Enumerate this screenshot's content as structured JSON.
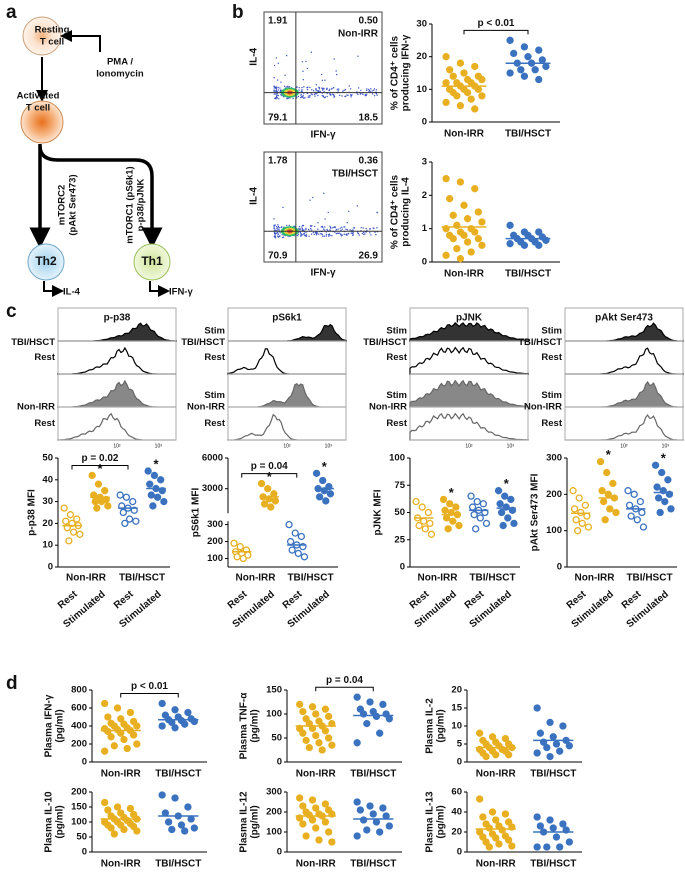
{
  "panel_labels": [
    "a",
    "b",
    "c",
    "d"
  ],
  "diagram": {
    "resting": [
      "Resting",
      "T cell"
    ],
    "stimulus": [
      "PMA /",
      "Ionomycin"
    ],
    "activated": [
      "Activated",
      "T cell"
    ],
    "left_path": [
      "mTORC2",
      "(pAkt Ser473)"
    ],
    "right_path": [
      "mTORC1 (pS6k1)",
      "p-p38/pJNK"
    ],
    "th2": "Th2",
    "th1": "Th1",
    "th2_output": "IL-4",
    "th1_output": "IFN-γ"
  },
  "flow_plots": [
    {
      "quadrants": [
        "1.91",
        "0.50",
        "79.1",
        "18.5"
      ],
      "label": "Non-IRR",
      "xlabel": "IFN-γ",
      "ylabel": "IL-4"
    },
    {
      "quadrants": [
        "1.78",
        "0.36",
        "70.9",
        "26.9"
      ],
      "label": "TBI/HSCT",
      "xlabel": "IFN-γ",
      "ylabel": "IL-4"
    }
  ],
  "histograms": [
    {
      "title": "p-p38",
      "row_labels": [
        null,
        "TBI/HSCT",
        "Rest",
        null,
        "Non-IRR",
        "Rest"
      ],
      "xtick_labels": [
        "10²",
        "10³"
      ]
    },
    {
      "title": "pS6k1",
      "row_labels": [
        "Stim",
        "TBI/HSCT",
        "Rest",
        "Stim",
        "Non-IRR",
        "Rest"
      ],
      "xtick_labels": [
        "10²",
        "10³"
      ]
    },
    {
      "title": "pJNK",
      "row_labels": [
        "Stim",
        "TBI/HSCT",
        "Rest",
        "Stim",
        "Non-IRR",
        "Rest"
      ],
      "xtick_labels": [
        "10²",
        "10³"
      ]
    },
    {
      "title": "pAkt Ser473",
      "row_labels": [
        "Stim",
        "TBI/HSCT",
        "Rest",
        "Stim",
        "Non-IRR",
        "Rest"
      ],
      "xtick_labels": [
        "10²",
        "10³"
      ]
    }
  ],
  "chart_data": [
    {
      "type": "strip",
      "ylabel": [
        "% of CD4⁺ cells",
        "producing IFN-γ"
      ],
      "categories": [
        "Non-IRR",
        "TBI/HSCT"
      ],
      "colors": [
        "#e8b021",
        "#3a72c0"
      ],
      "values": [
        [
          20,
          18,
          17,
          16,
          15,
          14,
          14,
          13,
          13,
          12,
          12,
          12,
          11,
          11,
          10,
          10,
          10,
          9,
          9,
          8,
          8,
          7,
          6,
          5,
          4
        ],
        [
          25,
          23,
          22,
          21,
          20,
          19,
          18,
          18,
          17,
          16,
          16,
          15,
          14,
          13
        ]
      ],
      "means": [
        11,
        18
      ],
      "ylim": [
        0,
        30
      ],
      "yticks": [
        0,
        10,
        20,
        30
      ],
      "brackets": [
        {
          "text": "p < 0.01",
          "categories": [
            0,
            1
          ]
        }
      ]
    },
    {
      "type": "strip",
      "ylabel": [
        "% of CD4⁺ cells",
        "producing IL-4"
      ],
      "categories": [
        "Non-IRR",
        "TBI/HSCT"
      ],
      "colors": [
        "#e8b021",
        "#3a72c0"
      ],
      "values": [
        [
          2.5,
          2.4,
          2.2,
          1.9,
          1.7,
          1.5,
          1.4,
          1.3,
          1.2,
          1.1,
          1.0,
          1.0,
          0.9,
          0.9,
          0.8,
          0.8,
          0.7,
          0.7,
          0.6,
          0.5,
          0.4,
          0.3,
          0.2,
          0.1
        ],
        [
          1.1,
          0.9,
          0.9,
          0.8,
          0.8,
          0.75,
          0.7,
          0.7,
          0.65,
          0.6,
          0.6,
          0.55,
          0.5,
          0.5
        ]
      ],
      "means": [
        1.05,
        0.7
      ],
      "ylim": [
        0,
        3
      ],
      "yticks": [
        0,
        1,
        2,
        3
      ]
    },
    {
      "type": "strip",
      "ylabel": [
        "p-p38 MFI"
      ],
      "categories": [
        "Rest",
        "Stimulated",
        "Rest",
        "Stimulated"
      ],
      "groups": [
        "Non-IRR",
        "TBI/HSCT"
      ],
      "rotated_labels": true,
      "colors": [
        "#e8b021",
        "#e8b021",
        "#3a72c0",
        "#3a72c0"
      ],
      "filled": [
        false,
        true,
        false,
        true
      ],
      "values": [
        [
          27,
          24,
          22,
          21,
          20,
          19,
          18,
          16,
          15,
          12
        ],
        [
          42,
          38,
          35,
          33,
          32,
          31,
          30,
          30,
          28,
          27
        ],
        [
          33,
          32,
          30,
          28,
          27,
          26,
          25,
          22,
          21,
          20
        ],
        [
          44,
          42,
          40,
          38,
          36,
          35,
          33,
          32,
          30,
          28
        ]
      ],
      "means": [
        19,
        32,
        27,
        36
      ],
      "ylim": [
        0,
        50
      ],
      "yticks": [
        0,
        10,
        20,
        30,
        40,
        50
      ],
      "brackets": [
        {
          "text": "p = 0.02",
          "categories": [
            0,
            2
          ]
        }
      ],
      "annotations": [
        {
          "text": "*",
          "category": 1
        },
        {
          "text": "*",
          "category": 3
        }
      ]
    },
    {
      "type": "strip",
      "ylabel": [
        "pS6k1 MFI"
      ],
      "categories": [
        "Rest",
        "Stimulated",
        "Rest",
        "Stimulated"
      ],
      "groups": [
        "Non-IRR",
        "TBI/HSCT"
      ],
      "rotated_labels": true,
      "colors": [
        "#e8b021",
        "#e8b021",
        "#3a72c0",
        "#3a72c0"
      ],
      "filled": [
        false,
        true,
        false,
        true
      ],
      "values": [
        [
          190,
          170,
          150,
          140,
          130,
          120,
          110,
          100
        ],
        [
          3500,
          3000,
          2500,
          2200,
          2000,
          1800,
          1500,
          1200
        ],
        [
          300,
          250,
          230,
          200,
          180,
          170,
          150,
          130,
          110
        ],
        [
          4500,
          3800,
          3200,
          3000,
          2800,
          2500,
          2200,
          1800
        ]
      ],
      "means": [
        140,
        2200,
        180,
        3000
      ],
      "segments": [
        {
          "ylim": [
            50,
            320
          ],
          "yticks": [
            100,
            200,
            300
          ]
        },
        {
          "ylim": [
            600,
            6000
          ],
          "yticks": [
            3000,
            6000
          ]
        }
      ],
      "brackets": [
        {
          "text": "p = 0.04",
          "categories": [
            0,
            2
          ]
        }
      ],
      "annotations": [
        {
          "text": "*",
          "category": 1
        },
        {
          "text": "*",
          "category": 3
        }
      ]
    },
    {
      "type": "strip",
      "ylabel": [
        "pJNK MFI"
      ],
      "categories": [
        "Rest",
        "Stimulated",
        "Rest",
        "Stimulated"
      ],
      "groups": [
        "Non-IRR",
        "TBI/HSCT"
      ],
      "rotated_labels": true,
      "colors": [
        "#e8b021",
        "#e8b021",
        "#3a72c0",
        "#3a72c0"
      ],
      "filled": [
        false,
        true,
        false,
        true
      ],
      "values": [
        [
          60,
          55,
          50,
          45,
          42,
          40,
          38,
          35,
          30
        ],
        [
          62,
          58,
          55,
          52,
          50,
          48,
          45,
          42,
          38,
          35
        ],
        [
          65,
          60,
          58,
          55,
          52,
          50,
          48,
          45,
          40,
          35
        ],
        [
          70,
          65,
          62,
          58,
          55,
          52,
          50,
          45,
          40,
          38
        ]
      ],
      "means": [
        45,
        48,
        52,
        54
      ],
      "ylim": [
        0,
        100
      ],
      "yticks": [
        0,
        25,
        50,
        75,
        100
      ],
      "annotations": [
        {
          "text": "*",
          "category": 1
        },
        {
          "text": "*",
          "category": 3
        }
      ]
    },
    {
      "type": "strip",
      "ylabel": [
        "pAkt Ser473 MFI"
      ],
      "categories": [
        "Rest",
        "Stimulated",
        "Rest",
        "Stimulated"
      ],
      "groups": [
        "Non-IRR",
        "TBI/HSCT"
      ],
      "rotated_labels": true,
      "colors": [
        "#e8b021",
        "#e8b021",
        "#3a72c0",
        "#3a72c0"
      ],
      "filled": [
        false,
        true,
        false,
        true
      ],
      "values": [
        [
          210,
          190,
          170,
          160,
          150,
          140,
          130,
          120,
          110,
          100
        ],
        [
          290,
          260,
          230,
          210,
          200,
          190,
          180,
          160,
          150,
          130
        ],
        [
          210,
          200,
          180,
          170,
          160,
          150,
          140,
          130,
          110
        ],
        [
          280,
          260,
          240,
          220,
          210,
          200,
          190,
          180,
          160,
          150
        ]
      ],
      "means": [
        148,
        190,
        160,
        205
      ],
      "ylim": [
        0,
        300
      ],
      "yticks": [
        0,
        100,
        200,
        300
      ],
      "annotations": [
        {
          "text": "*",
          "category": 1
        },
        {
          "text": "*",
          "category": 3
        }
      ]
    },
    {
      "type": "strip",
      "ylabel": [
        "Plasma IFN-γ",
        "(pg/ml)"
      ],
      "categories": [
        "Non-IRR",
        "TBI/HSCT"
      ],
      "colors": [
        "#e8b021",
        "#3a72c0"
      ],
      "values": [
        [
          650,
          600,
          550,
          500,
          480,
          450,
          430,
          420,
          400,
          400,
          380,
          370,
          360,
          350,
          340,
          320,
          300,
          280,
          250,
          200,
          180,
          150,
          120
        ],
        [
          650,
          580,
          550,
          520,
          500,
          480,
          470,
          460,
          450,
          440,
          420,
          400,
          380
        ]
      ],
      "means": [
        350,
        470
      ],
      "ylim": [
        0,
        800
      ],
      "yticks": [
        0,
        200,
        400,
        600,
        800
      ],
      "brackets": [
        {
          "text": "p < 0.01",
          "categories": [
            0,
            1
          ]
        }
      ]
    },
    {
      "type": "strip",
      "ylabel": [
        "Plasma TNF-α",
        "(pg/ml)"
      ],
      "categories": [
        "Non-IRR",
        "TBI/HSCT"
      ],
      "colors": [
        "#e8b021",
        "#3a72c0"
      ],
      "values": [
        [
          120,
          115,
          110,
          105,
          100,
          95,
          90,
          85,
          80,
          80,
          75,
          70,
          70,
          65,
          60,
          55,
          50,
          45,
          40,
          35,
          30,
          25
        ],
        [
          135,
          125,
          120,
          110,
          105,
          100,
          100,
          95,
          90,
          80,
          60,
          40
        ]
      ],
      "means": [
        75,
        97
      ],
      "ylim": [
        0,
        150
      ],
      "yticks": [
        0,
        50,
        100,
        150
      ],
      "brackets": [
        {
          "text": "p = 0.04",
          "categories": [
            0,
            1
          ]
        }
      ]
    },
    {
      "type": "strip",
      "ylabel": [
        "Plasma IL-2",
        "(pg/ml)"
      ],
      "categories": [
        "Non-IRR",
        "TBI/HSCT"
      ],
      "colors": [
        "#e8b021",
        "#3a72c0"
      ],
      "values": [
        [
          8,
          7,
          6.5,
          6,
          5.5,
          5,
          5,
          4.5,
          4,
          4,
          3.5,
          3.5,
          3,
          3,
          2.5,
          2,
          2,
          1.5
        ],
        [
          15,
          11,
          10,
          8,
          7,
          6,
          5.5,
          5,
          4.5,
          4,
          3,
          2.5,
          1.5
        ]
      ],
      "means": [
        4,
        6
      ],
      "ylim": [
        0,
        20
      ],
      "yticks": [
        0,
        5,
        10,
        15,
        20
      ]
    },
    {
      "type": "strip",
      "ylabel": [
        "Plasma IL-10",
        "(pg/ml)"
      ],
      "categories": [
        "Non-IRR",
        "TBI/HSCT"
      ],
      "colors": [
        "#e8b021",
        "#3a72c0"
      ],
      "values": [
        [
          165,
          150,
          145,
          140,
          130,
          125,
          120,
          115,
          110,
          110,
          105,
          100,
          100,
          95,
          90,
          90,
          85,
          80,
          75,
          70,
          60
        ],
        [
          190,
          180,
          150,
          130,
          120,
          110,
          100,
          90,
          80,
          75,
          70
        ]
      ],
      "means": [
        110,
        120
      ],
      "ylim": [
        0,
        200
      ],
      "yticks": [
        0,
        50,
        100,
        150,
        200
      ]
    },
    {
      "type": "strip",
      "ylabel": [
        "Plasma IL-12",
        "(pg/ml)"
      ],
      "categories": [
        "Non-IRR",
        "TBI/HSCT"
      ],
      "colors": [
        "#e8b021",
        "#3a72c0"
      ],
      "values": [
        [
          270,
          260,
          240,
          230,
          220,
          210,
          200,
          190,
          190,
          185,
          180,
          170,
          160,
          150,
          140,
          120,
          100,
          80,
          60,
          50
        ],
        [
          250,
          230,
          220,
          210,
          190,
          180,
          160,
          150,
          130,
          110,
          100,
          80
        ]
      ],
      "means": [
        180,
        165
      ],
      "ylim": [
        0,
        300
      ],
      "yticks": [
        0,
        100,
        200,
        300
      ]
    },
    {
      "type": "strip",
      "ylabel": [
        "Plasma IL-13",
        "(pg/ml)"
      ],
      "categories": [
        "Non-IRR",
        "TBI/HSCT"
      ],
      "colors": [
        "#e8b021",
        "#3a72c0"
      ],
      "values": [
        [
          53,
          40,
          38,
          35,
          32,
          30,
          28,
          26,
          25,
          24,
          22,
          20,
          18,
          16,
          15,
          14,
          12,
          10,
          8,
          6,
          5
        ],
        [
          35,
          32,
          28,
          26,
          24,
          22,
          20,
          15,
          10,
          5,
          5,
          5
        ]
      ],
      "means": [
        23,
        20
      ],
      "ylim": [
        0,
        60
      ],
      "yticks": [
        0,
        20,
        40,
        60
      ]
    }
  ]
}
